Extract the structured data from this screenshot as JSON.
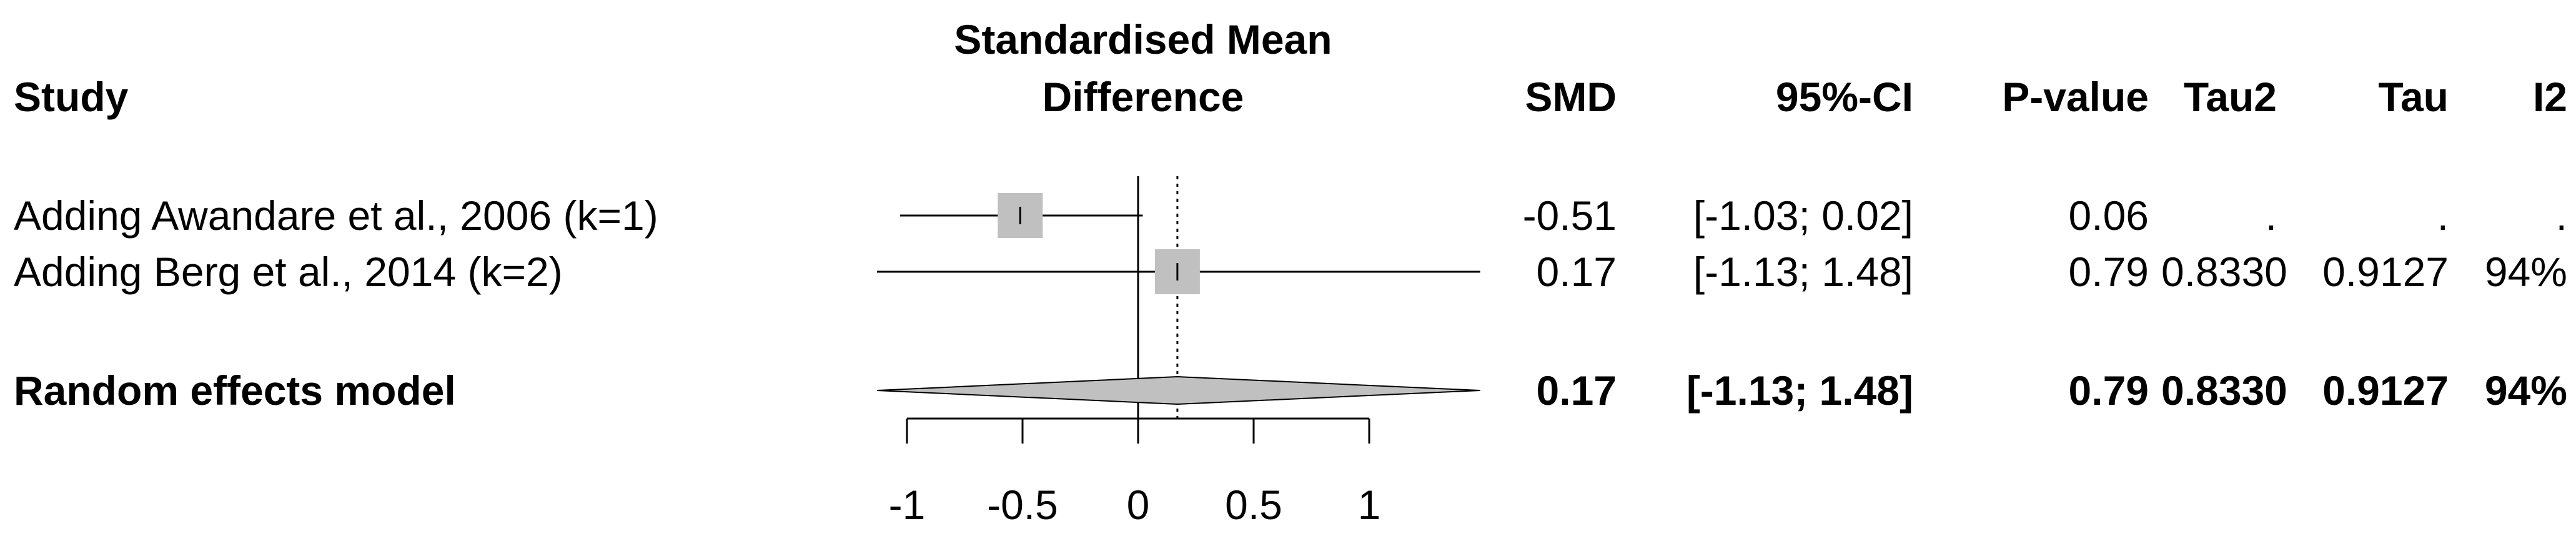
{
  "chart_data": {
    "type": "forest",
    "title_line1": "Standardised Mean",
    "title_line2": "Difference",
    "columns": {
      "study": "Study",
      "smd": "SMD",
      "ci": "95%-CI",
      "pvalue": "P-value",
      "tau2": "Tau2",
      "tau": "Tau",
      "i2": "I2"
    },
    "xlim": [
      -1,
      1
    ],
    "ticks": [
      {
        "value": -1,
        "label": "-1"
      },
      {
        "value": -0.5,
        "label": "-0.5"
      },
      {
        "value": 0,
        "label": "0"
      },
      {
        "value": 0.5,
        "label": "0.5"
      },
      {
        "value": 1,
        "label": "1"
      }
    ],
    "rows": [
      {
        "study": "Adding Awandare et al., 2006 (k=1)",
        "smd": -0.51,
        "lower": -1.03,
        "upper": 0.02,
        "smd_text": "-0.51",
        "ci_text": "[-1.03; 0.02]",
        "p_text": "0.06",
        "tau2_text": ".",
        "tau_text": ".",
        "i2_text": "."
      },
      {
        "study": "Adding Berg et al., 2014 (k=2)",
        "smd": 0.17,
        "lower": -1.13,
        "upper": 1.48,
        "smd_text": "0.17",
        "ci_text": "[-1.13; 1.48]",
        "p_text": "0.79",
        "tau2_text": "0.8330",
        "tau_text": "0.9127",
        "i2_text": "94%"
      }
    ],
    "pooled": {
      "study": "Random effects model",
      "smd": 0.17,
      "lower": -1.13,
      "upper": 1.48,
      "smd_text": "0.17",
      "ci_text": "[-1.13; 1.48]",
      "p_text": "0.79",
      "tau2_text": "0.8330",
      "tau_text": "0.9127",
      "i2_text": "94%"
    }
  },
  "colors": {
    "box": "#c0c0c0",
    "diamond": "#c0c0c0",
    "line": "#000000"
  }
}
